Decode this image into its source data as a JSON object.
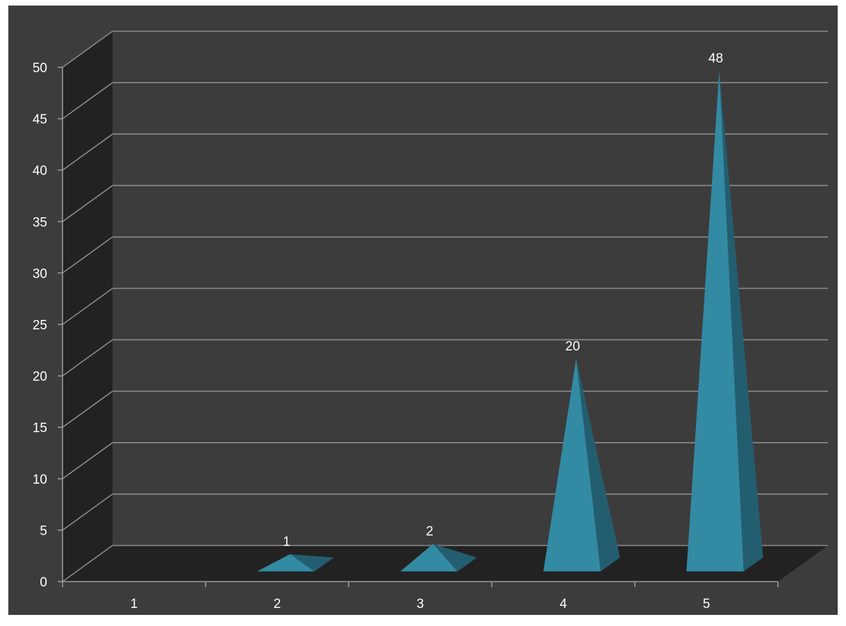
{
  "chart_data": {
    "type": "bar",
    "style": "3d-pyramid",
    "categories": [
      "1",
      "2",
      "3",
      "4",
      "5"
    ],
    "values": [
      0,
      1,
      2,
      20,
      48
    ],
    "data_labels": [
      "",
      "1",
      "2",
      "20",
      "48"
    ],
    "title": "",
    "xlabel": "",
    "ylabel": "",
    "ylim": [
      0,
      50
    ],
    "yticks": [
      0,
      5,
      10,
      15,
      20,
      25,
      30,
      35,
      40,
      45,
      50
    ],
    "grid": true,
    "legend": "none",
    "colors": {
      "background": "#3c3c3c",
      "back_wall": "#3c3c3c",
      "side_wall": "#222222",
      "floor": "#222222",
      "gridline": "#8c8c8c",
      "axis": "#9a9a9a",
      "bar_front": "#338aa3",
      "bar_side": "#235e70",
      "text": "#ffffff"
    }
  }
}
